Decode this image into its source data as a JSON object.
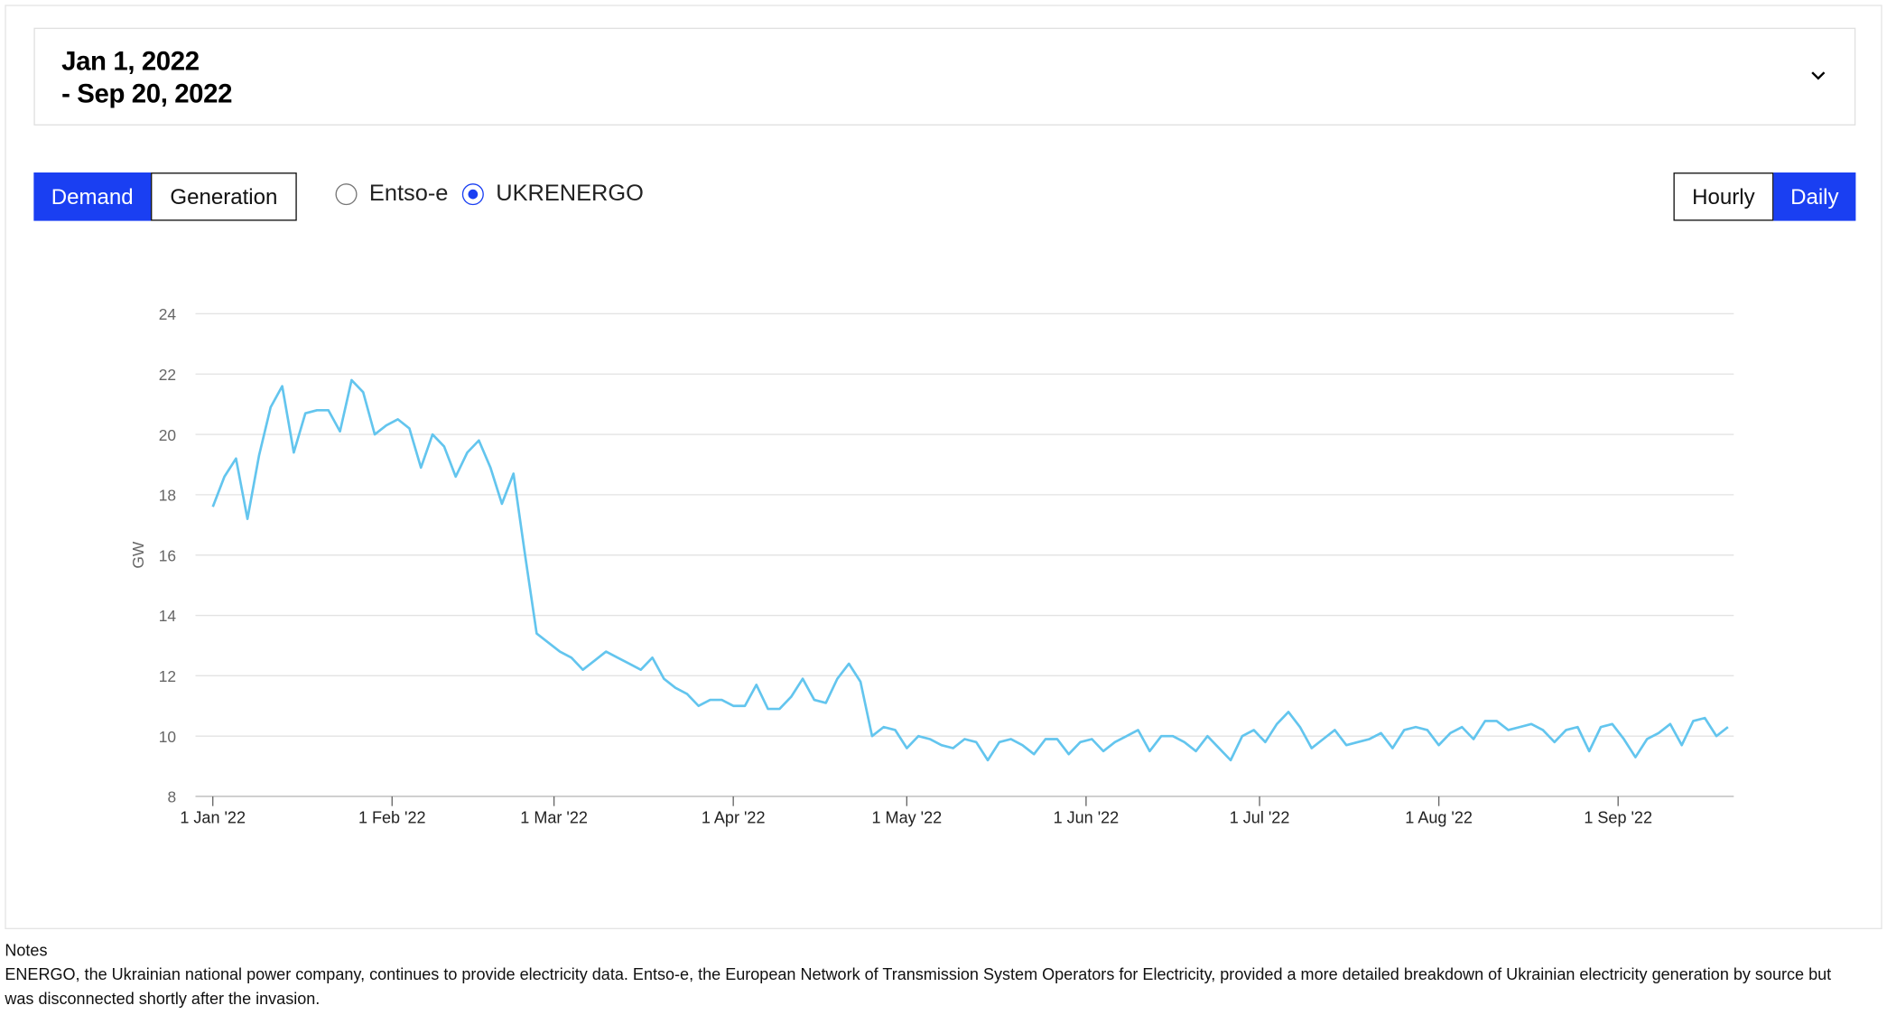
{
  "date_range": {
    "start": "Jan 1, 2022",
    "end": "- Sep 20, 2022"
  },
  "controls": {
    "metric_tabs": [
      "Demand",
      "Generation"
    ],
    "sources": [
      "Entso-e",
      "UKRENERGO"
    ],
    "resolution": [
      "Hourly",
      "Daily"
    ]
  },
  "chart_data": {
    "type": "line",
    "y_label": "GW",
    "grid": true,
    "xlim": [
      "2021-12-29",
      "2022-09-21"
    ],
    "xticks": [
      {
        "value": "2022-01-01",
        "label": "1 Jan '22"
      },
      {
        "value": "2022-02-01",
        "label": "1 Feb '22"
      },
      {
        "value": "2022-03-01",
        "label": "1 Mar '22"
      },
      {
        "value": "2022-04-01",
        "label": "1 Apr '22"
      },
      {
        "value": "2022-05-01",
        "label": "1 May '22"
      },
      {
        "value": "2022-06-01",
        "label": "1 Jun '22"
      },
      {
        "value": "2022-07-01",
        "label": "1 Jul '22"
      },
      {
        "value": "2022-08-01",
        "label": "1 Aug '22"
      },
      {
        "value": "2022-09-01",
        "label": "1 Sep '22"
      }
    ],
    "ylim": [
      8,
      24
    ],
    "yticks": [
      8,
      10,
      12,
      14,
      16,
      18,
      20,
      22,
      24
    ],
    "x": [
      "2022-01-01",
      "2022-01-03",
      "2022-01-05",
      "2022-01-07",
      "2022-01-09",
      "2022-01-11",
      "2022-01-13",
      "2022-01-15",
      "2022-01-17",
      "2022-01-19",
      "2022-01-21",
      "2022-01-23",
      "2022-01-25",
      "2022-01-27",
      "2022-01-29",
      "2022-01-31",
      "2022-02-02",
      "2022-02-04",
      "2022-02-06",
      "2022-02-08",
      "2022-02-10",
      "2022-02-12",
      "2022-02-14",
      "2022-02-16",
      "2022-02-18",
      "2022-02-20",
      "2022-02-22",
      "2022-02-24",
      "2022-02-26",
      "2022-02-28",
      "2022-03-02",
      "2022-03-04",
      "2022-03-06",
      "2022-03-08",
      "2022-03-10",
      "2022-03-12",
      "2022-03-14",
      "2022-03-16",
      "2022-03-18",
      "2022-03-20",
      "2022-03-22",
      "2022-03-24",
      "2022-03-26",
      "2022-03-28",
      "2022-03-30",
      "2022-04-01",
      "2022-04-03",
      "2022-04-05",
      "2022-04-07",
      "2022-04-09",
      "2022-04-11",
      "2022-04-13",
      "2022-04-15",
      "2022-04-17",
      "2022-04-19",
      "2022-04-21",
      "2022-04-23",
      "2022-04-25",
      "2022-04-27",
      "2022-04-29",
      "2022-05-01",
      "2022-05-03",
      "2022-05-05",
      "2022-05-07",
      "2022-05-09",
      "2022-05-11",
      "2022-05-13",
      "2022-05-15",
      "2022-05-17",
      "2022-05-19",
      "2022-05-21",
      "2022-05-23",
      "2022-05-25",
      "2022-05-27",
      "2022-05-29",
      "2022-05-31",
      "2022-06-02",
      "2022-06-04",
      "2022-06-06",
      "2022-06-08",
      "2022-06-10",
      "2022-06-12",
      "2022-06-14",
      "2022-06-16",
      "2022-06-18",
      "2022-06-20",
      "2022-06-22",
      "2022-06-24",
      "2022-06-26",
      "2022-06-28",
      "2022-06-30",
      "2022-07-02",
      "2022-07-04",
      "2022-07-06",
      "2022-07-08",
      "2022-07-10",
      "2022-07-12",
      "2022-07-14",
      "2022-07-16",
      "2022-07-18",
      "2022-07-20",
      "2022-07-22",
      "2022-07-24",
      "2022-07-26",
      "2022-07-28",
      "2022-07-30",
      "2022-08-01",
      "2022-08-03",
      "2022-08-05",
      "2022-08-07",
      "2022-08-09",
      "2022-08-11",
      "2022-08-13",
      "2022-08-15",
      "2022-08-17",
      "2022-08-19",
      "2022-08-21",
      "2022-08-23",
      "2022-08-25",
      "2022-08-27",
      "2022-08-29",
      "2022-08-31",
      "2022-09-02",
      "2022-09-04",
      "2022-09-06",
      "2022-09-08",
      "2022-09-10",
      "2022-09-12",
      "2022-09-14",
      "2022-09-16",
      "2022-09-18",
      "2022-09-20"
    ],
    "series": [
      {
        "name": "UKRENERGO",
        "color": "#63c5ee",
        "values": [
          17.6,
          18.6,
          19.2,
          17.2,
          19.3,
          20.9,
          21.6,
          19.4,
          20.7,
          20.8,
          20.8,
          20.1,
          21.8,
          21.4,
          20.0,
          20.3,
          20.5,
          20.2,
          18.9,
          20.0,
          19.6,
          18.6,
          19.4,
          19.8,
          18.9,
          17.7,
          18.7,
          16.0,
          13.4,
          13.1,
          12.8,
          12.6,
          12.2,
          12.5,
          12.8,
          12.6,
          12.4,
          12.2,
          12.6,
          11.9,
          11.6,
          11.4,
          11.0,
          11.2,
          11.2,
          11.0,
          11.0,
          11.7,
          10.9,
          10.9,
          11.3,
          11.9,
          11.2,
          11.1,
          11.9,
          12.4,
          11.8,
          10.0,
          10.3,
          10.2,
          9.6,
          10.0,
          9.9,
          9.7,
          9.6,
          9.9,
          9.8,
          9.2,
          9.8,
          9.9,
          9.7,
          9.4,
          9.9,
          9.9,
          9.4,
          9.8,
          9.9,
          9.5,
          9.8,
          10.0,
          10.2,
          9.5,
          10.0,
          10.0,
          9.8,
          9.5,
          10.0,
          9.6,
          9.2,
          10.0,
          10.2,
          9.8,
          10.4,
          10.8,
          10.3,
          9.6,
          9.9,
          10.2,
          9.7,
          9.8,
          9.9,
          10.1,
          9.6,
          10.2,
          10.3,
          10.2,
          9.7,
          10.1,
          10.3,
          9.9,
          10.5,
          10.5,
          10.2,
          10.3,
          10.4,
          10.2,
          9.8,
          10.2,
          10.3,
          9.5,
          10.3,
          10.4,
          9.9,
          9.3,
          9.9,
          10.1,
          10.4,
          9.7,
          10.5,
          10.6,
          10.0,
          10.3
        ]
      }
    ]
  },
  "notes": {
    "title": "Notes",
    "text": "ENERGO, the Ukrainian national power company, continues to provide electricity data. Entso-e, the European Network of Transmission System Operators for Electricity, provided a more detailed breakdown of Ukrainian electricity generation by source but was disconnected shortly after the invasion."
  }
}
